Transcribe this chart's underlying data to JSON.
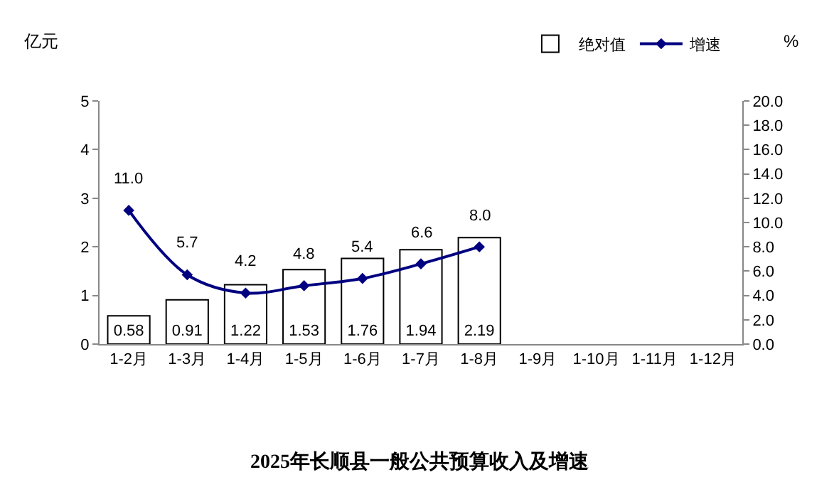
{
  "chart_data": {
    "type": "bar",
    "title": "2025年长顺县一般公共预算收入及增速",
    "ylabel": "亿元",
    "y2label": "%",
    "categories": [
      "1-2月",
      "1-3月",
      "1-4月",
      "1-5月",
      "1-6月",
      "1-7月",
      "1-8月",
      "1-9月",
      "1-10月",
      "1-11月",
      "1-12月"
    ],
    "series": [
      {
        "name": "绝对值",
        "color": "#ffffff",
        "values": [
          0.58,
          0.91,
          1.22,
          1.53,
          1.76,
          1.94,
          2.19,
          null,
          null,
          null,
          null
        ],
        "value_labels": [
          "0.58",
          "0.91",
          "1.22",
          "1.53",
          "1.76",
          "1.94",
          "2.19",
          null,
          null,
          null,
          null
        ]
      },
      {
        "name": "增速",
        "type": "line",
        "axis": "y2",
        "color": "#000080",
        "marker": "diamond",
        "values": [
          11.0,
          5.7,
          4.2,
          4.8,
          5.4,
          6.6,
          8.0,
          null,
          null,
          null,
          null
        ],
        "value_labels": [
          "11.0",
          "5.7",
          "4.2",
          "4.8",
          "5.4",
          "6.6",
          "8.0",
          null,
          null,
          null,
          null
        ]
      }
    ],
    "ylim": [
      0,
      5
    ],
    "yticks": [
      0,
      1,
      2,
      3,
      4,
      5
    ],
    "y2lim": [
      0,
      20
    ],
    "y2ticks": [
      {
        "value": 0,
        "label": "0.0"
      },
      {
        "value": 2,
        "label": "2.0"
      },
      {
        "value": 4,
        "label": "4.0"
      },
      {
        "value": 6,
        "label": "6.0"
      },
      {
        "value": 8,
        "label": "8.0"
      },
      {
        "value": 10,
        "label": "10.0"
      },
      {
        "value": 12,
        "label": "12.0"
      },
      {
        "value": 14,
        "label": "14.0"
      },
      {
        "value": 16,
        "label": "16.0"
      },
      {
        "value": 18,
        "label": "18.0"
      },
      {
        "value": 20,
        "label": "20.0"
      }
    ],
    "grid": false,
    "legend": "top right"
  }
}
